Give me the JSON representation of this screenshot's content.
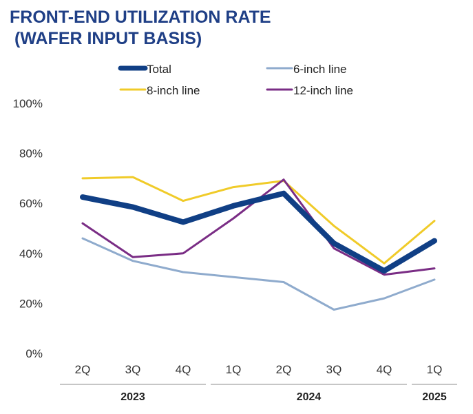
{
  "chart_data": {
    "type": "line",
    "title_lines": [
      "FRONT-END UTILIZATION RATE",
      " (WAFER INPUT BASIS)"
    ],
    "categories": [
      "2Q",
      "3Q",
      "4Q",
      "1Q",
      "2Q",
      "3Q",
      "4Q",
      "1Q"
    ],
    "groups": [
      {
        "label": "2023",
        "span": [
          0,
          2
        ]
      },
      {
        "label": "2024",
        "span": [
          3,
          6
        ]
      },
      {
        "label": "2025",
        "span": [
          7,
          7
        ]
      }
    ],
    "ylim": [
      0,
      100
    ],
    "yticks": [
      "0%",
      "20%",
      "40%",
      "60%",
      "80%",
      "100%"
    ],
    "legend_position": "top",
    "series": [
      {
        "name": "Total",
        "color": "#103f85",
        "values": [
          62.5,
          58.5,
          52.5,
          59,
          64,
          44,
          33,
          45
        ]
      },
      {
        "name": "6-inch line",
        "color": "#8fabcd",
        "values": [
          46,
          37,
          32.5,
          30.5,
          28.5,
          17.5,
          22,
          29.5
        ]
      },
      {
        "name": "8-inch line",
        "color": "#f0cb29",
        "values": [
          70,
          70.5,
          61,
          66.5,
          69,
          51,
          36,
          53
        ]
      },
      {
        "name": "12-inch line",
        "color": "#7a2d85",
        "values": [
          52,
          38.5,
          40,
          54,
          69.5,
          42,
          31.5,
          34
        ]
      }
    ]
  }
}
